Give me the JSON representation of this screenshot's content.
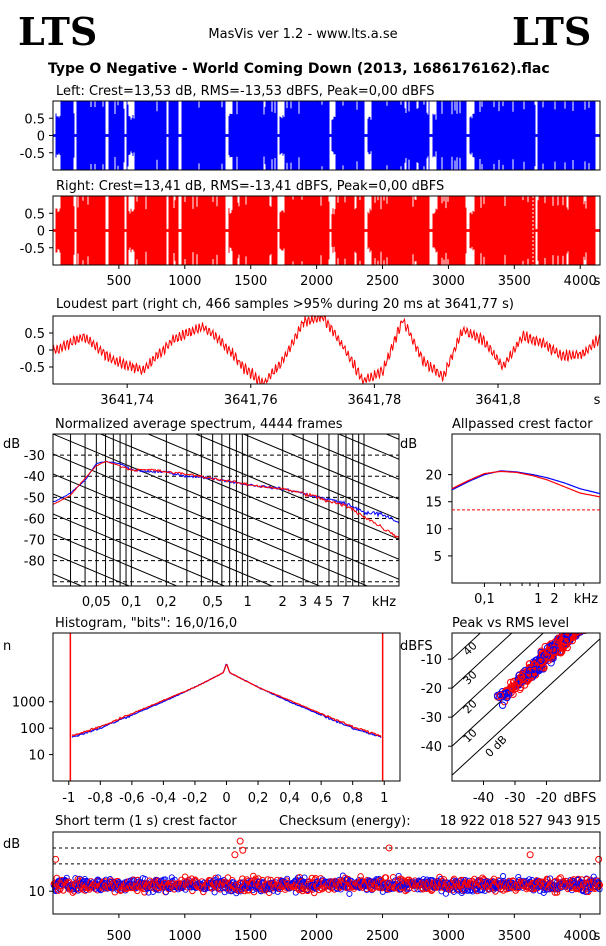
{
  "header": {
    "logo_left": "LTS",
    "logo_right": "LTS",
    "app": "MasVis ver 1.2 - www.lts.a.se",
    "file_title": "Type O Negative - World Coming Down (2013, 1686176162).flac"
  },
  "chart_data": [
    {
      "id": "left-waveform",
      "type": "area",
      "title": "Left: Crest=13,53 dB, RMS=-13,53 dBFS, Peak=0,00 dBFS",
      "yticks": [
        "0.5",
        "0",
        "-0.5"
      ],
      "ylim": [
        -1,
        1
      ],
      "xlim": [
        0,
        4150
      ],
      "color": "#0000ff",
      "gaps_s": [
        [
          0,
          20
        ],
        [
          165,
          180
        ],
        [
          395,
          420
        ],
        [
          545,
          560
        ],
        [
          860,
          880
        ],
        [
          955,
          975
        ],
        [
          1310,
          1330
        ],
        [
          1700,
          1720
        ],
        [
          2095,
          2110
        ],
        [
          2365,
          2385
        ],
        [
          2855,
          2880
        ],
        [
          3140,
          3160
        ],
        [
          3660,
          3675
        ],
        [
          4115,
          4150
        ]
      ],
      "quiet_s": [
        [
          20,
          60
        ],
        [
          575,
          620
        ],
        [
          1330,
          1360
        ],
        [
          1720,
          1760
        ],
        [
          2110,
          2140
        ],
        [
          2385,
          2420
        ],
        [
          2880,
          2910
        ],
        [
          3160,
          3195
        ]
      ]
    },
    {
      "id": "right-waveform",
      "type": "area",
      "title": "Right: Crest=13,41 dB, RMS=-13,41 dBFS, Peak=0,00 dBFS",
      "yticks": [
        "0.5",
        "0",
        "-0.5"
      ],
      "ylim": [
        -1,
        1
      ],
      "xlim": [
        0,
        4150
      ],
      "xticks": [
        "500",
        "1000",
        "1500",
        "2000",
        "2500",
        "3000",
        "3500",
        "4000"
      ],
      "xunit": "s",
      "color": "#ff0000",
      "peak_marker_s": 3641.77
    },
    {
      "id": "loudest-part",
      "type": "line",
      "title": "Loudest part (right ch, 466 samples >95% during 20 ms at 3641,77 s)",
      "yticks": [
        "0.5",
        "0",
        "-0.5"
      ],
      "ylim": [
        -1,
        1
      ],
      "xlim": [
        3641.728,
        3641.8165
      ],
      "xticks": [
        "3641,74",
        "3641,76",
        "3641,78",
        "3641,8"
      ],
      "xunit": "s",
      "color": "#ff0000"
    },
    {
      "id": "spectrum",
      "type": "line",
      "title": "Normalized average spectrum, 4444 frames",
      "yunit": "dB",
      "yticks": [
        "-30",
        "-40",
        "-50",
        "-60",
        "-70",
        "-80"
      ],
      "ylim": [
        -92,
        -20
      ],
      "xticks": [
        "0,05",
        "0,1",
        "0,2",
        "0,5",
        "1",
        "2",
        "3",
        "4",
        "5",
        "7"
      ],
      "xunit": "kHz",
      "xlim_khz": [
        0.0212,
        20
      ],
      "series": [
        {
          "color": "#0000ff",
          "x_khz": [
            0.022,
            0.03,
            0.04,
            0.05,
            0.06,
            0.08,
            0.1,
            0.15,
            0.2,
            0.3,
            0.5,
            0.8,
            1,
            2,
            3,
            4,
            5,
            7,
            10,
            14,
            20
          ],
          "y_db": [
            -52,
            -48,
            -42,
            -34,
            -33,
            -34,
            -37,
            -38,
            -38,
            -40,
            -41,
            -43,
            -44,
            -46,
            -48,
            -50,
            -51,
            -53,
            -57,
            -58,
            -62
          ]
        },
        {
          "color": "#ff0000",
          "x_khz": [
            0.022,
            0.03,
            0.04,
            0.05,
            0.06,
            0.08,
            0.1,
            0.15,
            0.2,
            0.3,
            0.5,
            0.8,
            1,
            2,
            3,
            4,
            5,
            7,
            10,
            14,
            20
          ],
          "y_db": [
            -53,
            -49,
            -41,
            -35,
            -33,
            -35,
            -37,
            -37,
            -38,
            -39,
            -41,
            -43,
            -44,
            -46,
            -48,
            -50,
            -52,
            -54,
            -59,
            -64,
            -69
          ]
        }
      ]
    },
    {
      "id": "allpassed-crest",
      "type": "line",
      "title": "Allpassed crest factor",
      "yunit": "dB",
      "yticks": [
        "20",
        "15",
        "10",
        "5"
      ],
      "ylim": [
        0,
        27.5
      ],
      "xticks": [
        "0,1",
        "1",
        "2"
      ],
      "xunit": "kHz",
      "xlim_khz": [
        0.025,
        14
      ],
      "reference_db": 13.5,
      "series": [
        {
          "color": "#0000ff",
          "x_khz": [
            0.025,
            0.05,
            0.1,
            0.2,
            0.4,
            0.8,
            1.5,
            3,
            6,
            14
          ],
          "y_db": [
            17.2,
            18.7,
            20,
            20.7,
            20.5,
            20,
            19.4,
            18.5,
            17.4,
            16.5
          ]
        },
        {
          "color": "#ff0000",
          "x_khz": [
            0.025,
            0.05,
            0.1,
            0.2,
            0.4,
            0.8,
            1.5,
            3,
            6,
            14
          ],
          "y_db": [
            17.4,
            18.9,
            20.2,
            20.6,
            20.4,
            19.8,
            19,
            17.8,
            16.6,
            15.9
          ]
        }
      ]
    },
    {
      "id": "histogram",
      "type": "line",
      "title": "Histogram, \"bits\": 16,0/16,0",
      "yunit": "n",
      "yticks": [
        "1000",
        "100",
        "10"
      ],
      "ylim_log10": [
        0,
        5.6
      ],
      "xticks": [
        "-1",
        "-0,8",
        "-0,6",
        "-0,4",
        "-0,2",
        "0",
        "0,2",
        "0,4",
        "0,6",
        "0,8",
        "1"
      ],
      "xlim": [
        -1.1,
        1.1
      ],
      "series": [
        {
          "color": "#0000ff",
          "x": [
            -0.985,
            -0.8,
            -0.6,
            -0.4,
            -0.2,
            -0.02,
            0,
            0.02,
            0.2,
            0.4,
            0.6,
            0.8,
            0.985
          ],
          "log10n": [
            1.65,
            2.0,
            2.5,
            3.0,
            3.55,
            4.1,
            4.45,
            4.1,
            3.55,
            3.0,
            2.5,
            2.0,
            1.65
          ]
        },
        {
          "color": "#ff0000",
          "x": [
            -0.985,
            -0.8,
            -0.6,
            -0.4,
            -0.2,
            -0.02,
            0,
            0.02,
            0.2,
            0.4,
            0.6,
            0.8,
            0.985
          ],
          "log10n": [
            1.7,
            2.05,
            2.55,
            3.05,
            3.55,
            4.1,
            4.45,
            4.1,
            3.55,
            3.05,
            2.55,
            2.05,
            1.7
          ]
        }
      ]
    },
    {
      "id": "peak-vs-rms",
      "type": "scatter",
      "title": "Peak vs RMS level",
      "yunit": "dBFS",
      "yticks": [
        "-10",
        "-20",
        "-30",
        "-40"
      ],
      "ylim": [
        -52,
        -1
      ],
      "xticks": [
        "-40",
        "-30",
        "-20"
      ],
      "xunit": "dBFS",
      "xlim": [
        -50,
        -3
      ],
      "crest_lines_db": [
        0,
        10,
        20,
        30,
        40
      ],
      "crest_line_labels": [
        "0 dB",
        "10",
        "20",
        "30",
        "40"
      ],
      "rms_range": [
        -36,
        -8
      ],
      "crest_range_db": [
        3,
        20
      ]
    },
    {
      "id": "short-term-crest",
      "type": "scatter",
      "title": "Short term (1 s) crest factor",
      "checksum_label": "Checksum (energy):",
      "checksum_value": "18 922 018 527 943 915",
      "yunit": "dB",
      "yticks": [
        "10"
      ],
      "ylim": [
        5,
        23
      ],
      "xticks": [
        "500",
        "1000",
        "1500",
        "2000",
        "2500",
        "3000",
        "3500",
        "4000"
      ],
      "xunit": "s",
      "xlim": [
        0,
        4150
      ],
      "mean_db": 11,
      "spread_db": 3,
      "dashed_levels_db": [
        16,
        19.5
      ],
      "outliers": [
        [
          20,
          17
        ],
        [
          1380,
          18
        ],
        [
          1420,
          21
        ],
        [
          1440,
          19
        ],
        [
          2550,
          19.5
        ],
        [
          3620,
          18
        ],
        [
          4140,
          17
        ]
      ]
    }
  ]
}
